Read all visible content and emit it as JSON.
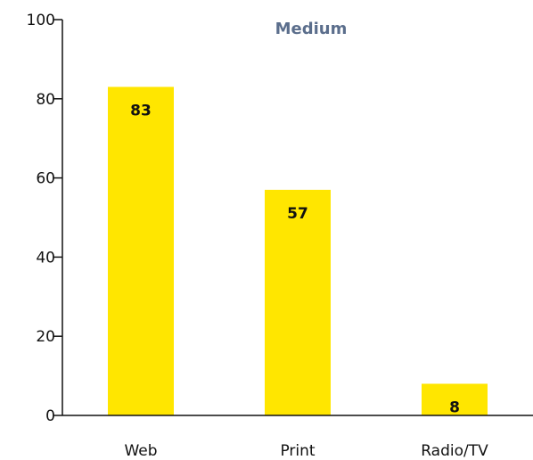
{
  "chart_data": {
    "type": "bar",
    "title": "Medium",
    "categories": [
      "Web",
      "Print",
      "Radio/TV"
    ],
    "values": [
      83,
      57,
      8
    ],
    "data_labels": [
      "83",
      "57",
      "8"
    ],
    "ylim": [
      0,
      100
    ],
    "yticks": [
      "0",
      "20",
      "40",
      "60",
      "80",
      "100"
    ],
    "xlabel": "",
    "ylabel": "",
    "grid": false,
    "bar_color": "#FFE600",
    "title_color": "#5B6E8C"
  }
}
